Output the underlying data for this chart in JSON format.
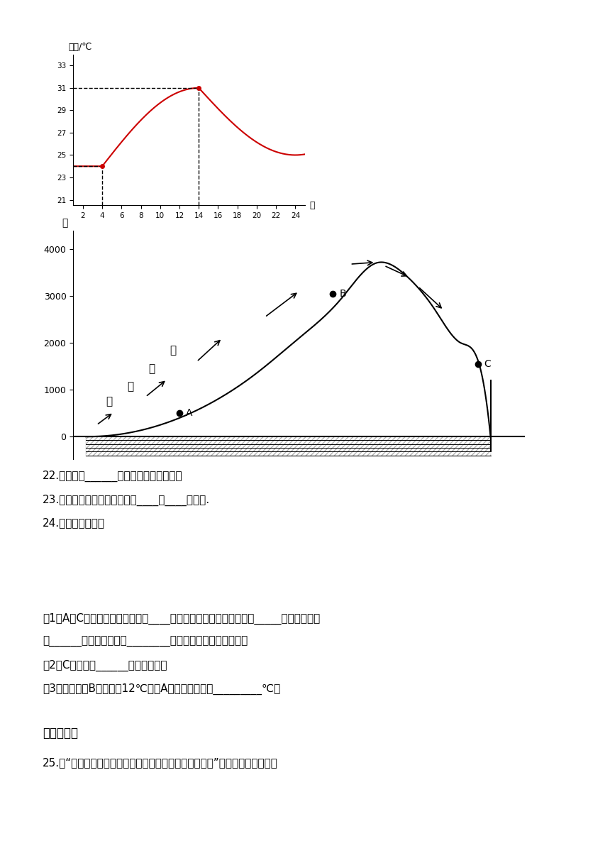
{
  "bg_color": "#ffffff",
  "chart1": {
    "ylabel": "气温/℃",
    "xlabel": "时",
    "x_ticks": [
      2,
      4,
      6,
      8,
      10,
      12,
      14,
      16,
      18,
      20,
      22,
      24
    ],
    "y_ticks": [
      21,
      23,
      25,
      27,
      29,
      31,
      33
    ],
    "ylim": [
      20.5,
      34
    ],
    "xlim": [
      1,
      25
    ],
    "min_temp": 24,
    "min_time": 4,
    "max_temp": 31,
    "max_time": 14,
    "end_temp": 25,
    "curve_color": "#cc0000",
    "dashed_color": "#000000"
  },
  "chart2": {
    "ylabel": "米",
    "y_ticks": [
      0,
      1000,
      2000,
      3000,
      4000
    ],
    "ylim": [
      -500,
      4500
    ],
    "point_A": [
      2.2,
      500
    ],
    "point_B": [
      5.8,
      3050
    ],
    "point_C": [
      9.2,
      1550
    ],
    "label_A": "A",
    "label_B": "B",
    "label_C": "C",
    "text_nuan": "暖",
    "text_shi": "湿",
    "text_qi": "气",
    "text_liu": "流"
  },
  "q22": "22.等温线是______相同的地点连成的线。",
  "q23": "23.影响我国气候的主要因素是____、____、地形.",
  "q24": "24.读图回答问题。",
  "q24_1": "（1）A、C两地中降水量丰富的是____地，这是因为这里处在山地的_____坡，暖湿气流",
  "q24_2": "呼______运动，随气温的________，水汽凝结，易成云致雨。",
  "q24_3": "（2）C地的降水______（多，少）。",
  "q24_4": "（3）如果此时B地气温是12℃，则A地的气温大约是_________℃。",
  "section3_title": "三、解答题",
  "q25": "25.读“世界年平均气温图和世界年平均降水量图（部分）”图，回答下列问题。"
}
